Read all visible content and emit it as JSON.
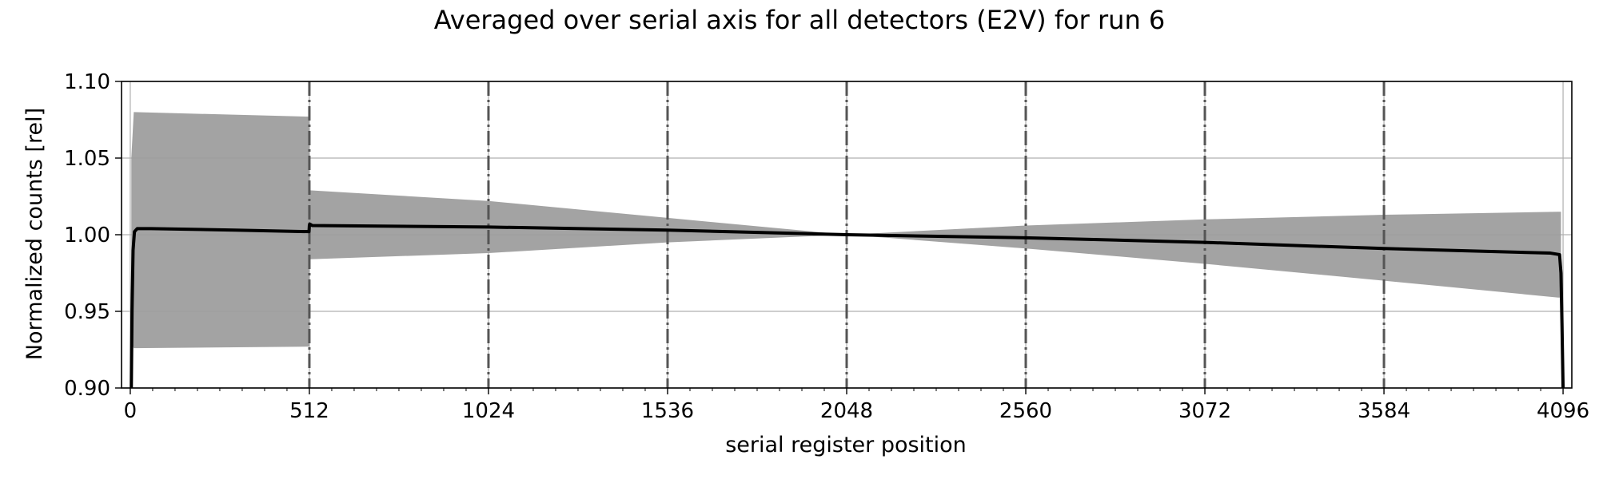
{
  "chart_data": {
    "type": "line",
    "title": "Averaged over serial axis for all detectors (E2V) for run 6",
    "xlabel": "serial register position",
    "ylabel": "Normalized counts [rel]",
    "xlim": [
      -25,
      4121
    ],
    "ylim": [
      0.9,
      1.1
    ],
    "xticks": [
      0,
      512,
      1024,
      1536,
      2048,
      2560,
      3072,
      3584,
      4096
    ],
    "xtick_labels": [
      "0",
      "512",
      "1024",
      "1536",
      "2048",
      "2560",
      "3072",
      "3584",
      "4096"
    ],
    "yticks": [
      0.9,
      0.95,
      1.0,
      1.05,
      1.1
    ],
    "ytick_labels": [
      "0.90",
      "0.95",
      "1.00",
      "1.05",
      "1.10"
    ],
    "grid": true,
    "segment_boundaries": [
      512,
      1024,
      1536,
      2048,
      2560,
      3072,
      3584
    ],
    "colors": {
      "mean_line": "#000000",
      "band": "#9e9e9e",
      "grid": "#b0b0b0",
      "boundary": "#555555"
    },
    "series": [
      {
        "kind": "band",
        "x": [
          3,
          10,
          512,
          513,
          1024,
          1536,
          2048,
          2560,
          3072,
          3584,
          4082,
          4090
        ],
        "upper": [
          1.05,
          1.08,
          1.077,
          1.029,
          1.022,
          1.011,
          1.0,
          1.006,
          1.01,
          1.013,
          1.015,
          1.015
        ],
        "lower": [
          0.93,
          0.926,
          0.927,
          0.984,
          0.988,
          0.995,
          1.0,
          0.991,
          0.981,
          0.97,
          0.959,
          0.959
        ]
      },
      {
        "kind": "line",
        "x": [
          3,
          5,
          8,
          12,
          20,
          60,
          300,
          511,
          512,
          513,
          520,
          1024,
          1536,
          2048,
          2560,
          3072,
          3584,
          4060,
          4086,
          4090,
          4093,
          4096
        ],
        "y": [
          0.9,
          0.95,
          0.99,
          1.002,
          1.004,
          1.004,
          1.003,
          1.002,
          1.006,
          1.007,
          1.006,
          1.005,
          1.003,
          1.0,
          0.998,
          0.995,
          0.991,
          0.988,
          0.987,
          0.975,
          0.94,
          0.9
        ]
      }
    ]
  }
}
